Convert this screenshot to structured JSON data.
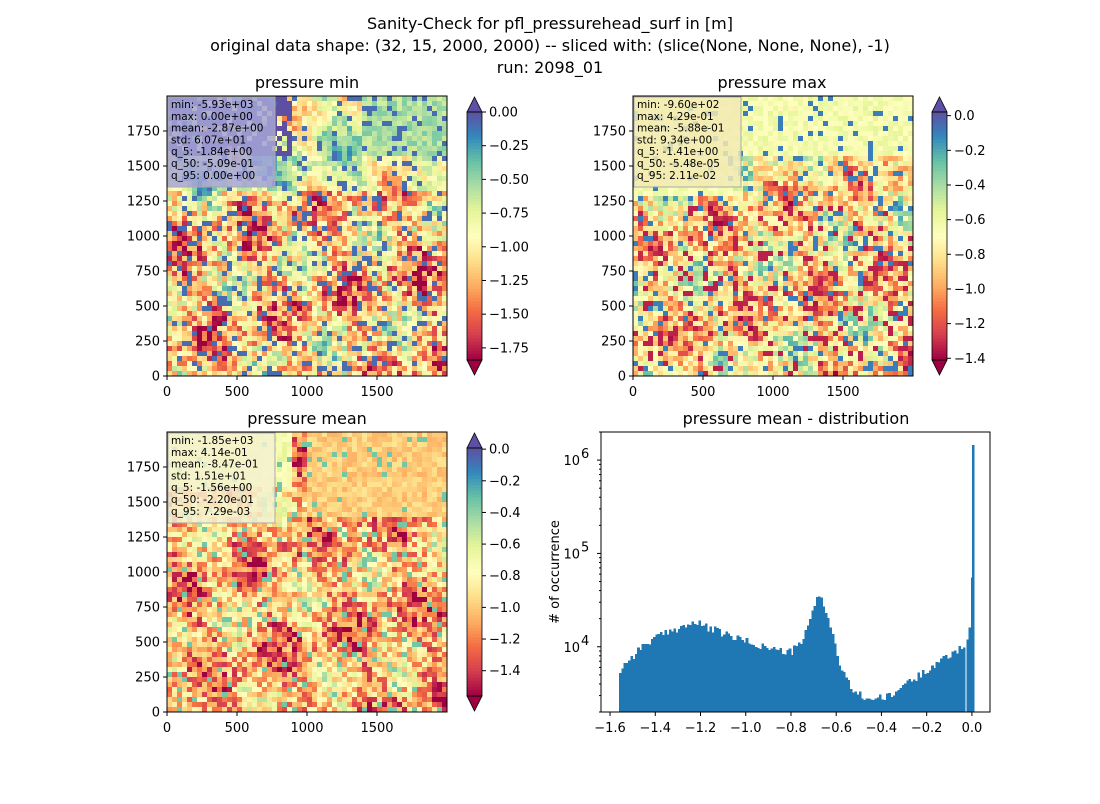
{
  "figure": {
    "title_lines": [
      "Sanity-Check for pfl_pressurehead_surf in [m]",
      "original data shape: (32, 15, 2000, 2000) -- sliced with: (slice(None, None, None), -1)",
      "run: 2098_01"
    ]
  },
  "colors": {
    "spectral": [
      "#9e0142",
      "#d53e4f",
      "#f46d43",
      "#fdae61",
      "#fee08b",
      "#ffffbf",
      "#e6f598",
      "#abdda4",
      "#66c2a5",
      "#3288bd",
      "#5e4fa2"
    ],
    "hist_bar": "#1f77b4"
  },
  "chart_data": [
    {
      "type": "heatmap",
      "title": "pressure min",
      "xticks": [
        "0",
        "500",
        "1000",
        "1500"
      ],
      "yticks": [
        "0",
        "250",
        "500",
        "750",
        "1000",
        "1250",
        "1500",
        "1750"
      ],
      "xlim": [
        0,
        2000
      ],
      "ylim": [
        0,
        2000
      ],
      "colorbar": {
        "vmin": -1.84,
        "vmax": 0.0,
        "extend": "both",
        "ticks": [
          0.0,
          -0.25,
          -0.5,
          -0.75,
          -1.0,
          -1.25,
          -1.5,
          -1.75
        ],
        "tick_labels": [
          "0.00",
          "−0.25",
          "−0.50",
          "−0.75",
          "−1.00",
          "−1.25",
          "−1.50",
          "−1.75"
        ]
      },
      "stats": [
        "min: -5.93e+03",
        "max: 0.00e+00",
        "mean: -2.87e+00",
        "std: 6.07e+01",
        "q_5: -1.84e+00",
        "q_50: -5.09e-01",
        "q_95: 0.00e+00"
      ],
      "stats_box_color": "#a6a5d8"
    },
    {
      "type": "heatmap",
      "title": "pressure max",
      "xticks": [
        "0",
        "500",
        "1000",
        "1500"
      ],
      "yticks": [
        "0",
        "250",
        "500",
        "750",
        "1000",
        "1250",
        "1500",
        "1750"
      ],
      "xlim": [
        0,
        2000
      ],
      "ylim": [
        0,
        2000
      ],
      "colorbar": {
        "vmin": -1.41,
        "vmax": 0.0211,
        "extend": "both",
        "ticks": [
          0.0,
          -0.2,
          -0.4,
          -0.6,
          -0.8,
          -1.0,
          -1.2,
          -1.4
        ],
        "tick_labels": [
          "0.0",
          "−0.2",
          "−0.4",
          "−0.6",
          "−0.8",
          "−1.0",
          "−1.2",
          "−1.4"
        ]
      },
      "stats": [
        "min: -9.60e+02",
        "max: 4.29e-01",
        "mean: -5.88e-01",
        "std: 9.34e+00",
        "q_5: -1.41e+00",
        "q_50: -5.48e-05",
        "q_95: 2.11e-02"
      ],
      "stats_box_color": "#f2eab4"
    },
    {
      "type": "heatmap",
      "title": "pressure mean",
      "xticks": [
        "0",
        "500",
        "1000",
        "1500"
      ],
      "yticks": [
        "0",
        "250",
        "500",
        "750",
        "1000",
        "1250",
        "1500",
        "1750"
      ],
      "xlim": [
        0,
        2000
      ],
      "ylim": [
        0,
        2000
      ],
      "colorbar": {
        "vmin": -1.56,
        "vmax": 0.00729,
        "extend": "both",
        "ticks": [
          0.0,
          -0.2,
          -0.4,
          -0.6,
          -0.8,
          -1.0,
          -1.2,
          -1.4
        ],
        "tick_labels": [
          "0.0",
          "−0.2",
          "−0.4",
          "−0.6",
          "−0.8",
          "−1.0",
          "−1.2",
          "−1.4"
        ]
      },
      "stats": [
        "min: -1.85e+03",
        "max: 4.14e-01",
        "mean: -8.47e-01",
        "std: 1.51e+01",
        "q_5: -1.56e+00",
        "q_50: -2.20e-01",
        "q_95: 7.29e-03"
      ],
      "stats_box_color": "#f4f1cf"
    },
    {
      "type": "bar",
      "title": "pressure mean - distribution",
      "ylabel": "# of occurrence",
      "xlabel": "",
      "yscale": "log",
      "xlim": [
        -1.64,
        0.08
      ],
      "ylim": [
        2000,
        2000000
      ],
      "xticks": [
        -1.6,
        -1.4,
        -1.2,
        -1.0,
        -0.8,
        -0.6,
        -0.4,
        -0.2,
        0.0
      ],
      "xtick_labels": [
        "−1.6",
        "−1.4",
        "−1.2",
        "−1.0",
        "−0.8",
        "−0.6",
        "−0.4",
        "−0.2",
        "0.0"
      ],
      "yticks": [
        10000,
        100000,
        1000000
      ],
      "ytick_base": "10",
      "ytick_exponents": [
        "4",
        "5",
        "6"
      ],
      "bin_width": 0.01,
      "profile": [
        [
          -1.565,
          0
        ],
        [
          -1.56,
          5000
        ],
        [
          -1.55,
          6000
        ],
        [
          -1.5,
          8000
        ],
        [
          -1.45,
          10500
        ],
        [
          -1.4,
          12500
        ],
        [
          -1.35,
          14000
        ],
        [
          -1.3,
          16000
        ],
        [
          -1.25,
          17500
        ],
        [
          -1.22,
          18000
        ],
        [
          -1.18,
          16500
        ],
        [
          -1.12,
          14500
        ],
        [
          -1.05,
          12500
        ],
        [
          -1.0,
          11500
        ],
        [
          -0.95,
          10500
        ],
        [
          -0.9,
          9800
        ],
        [
          -0.85,
          9000
        ],
        [
          -0.8,
          8800
        ],
        [
          -0.76,
          10500
        ],
        [
          -0.73,
          15000
        ],
        [
          -0.71,
          21000
        ],
        [
          -0.69,
          30000
        ],
        [
          -0.68,
          38000
        ],
        [
          -0.66,
          32000
        ],
        [
          -0.64,
          22000
        ],
        [
          -0.62,
          15000
        ],
        [
          -0.6,
          9000
        ],
        [
          -0.58,
          6000
        ],
        [
          -0.55,
          4200
        ],
        [
          -0.52,
          3300
        ],
        [
          -0.48,
          2900
        ],
        [
          -0.45,
          2800
        ],
        [
          -0.4,
          2800
        ],
        [
          -0.35,
          3000
        ],
        [
          -0.32,
          3600
        ],
        [
          -0.3,
          4000
        ],
        [
          -0.28,
          4300
        ],
        [
          -0.25,
          4500
        ],
        [
          -0.22,
          5200
        ],
        [
          -0.18,
          6200
        ],
        [
          -0.14,
          7000
        ],
        [
          -0.1,
          8000
        ],
        [
          -0.06,
          9500
        ],
        [
          -0.03,
          11000
        ],
        [
          -0.015,
          14000
        ],
        [
          -0.005,
          26000
        ],
        [
          0.0,
          1450000
        ]
      ],
      "tail_bins": [
        [
          -0.025,
          12000
        ],
        [
          -0.015,
          16000
        ],
        [
          -0.005,
          55000
        ],
        [
          0.0,
          1450000
        ]
      ]
    }
  ]
}
